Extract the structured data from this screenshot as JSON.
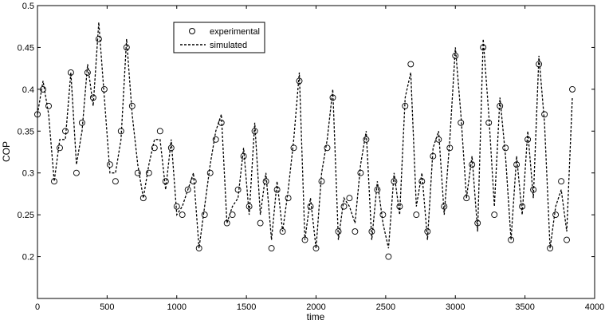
{
  "chart_data": {
    "type": "line",
    "title": "",
    "xlabel": "time",
    "ylabel": "COP",
    "xlim": [
      0,
      4000
    ],
    "ylim": [
      0.15,
      0.5
    ],
    "xticks": [
      0,
      500,
      1000,
      1500,
      2000,
      2500,
      3000,
      3500,
      4000
    ],
    "yticks": [
      0.2,
      0.25,
      0.3,
      0.35,
      0.4,
      0.45,
      0.5
    ],
    "xtick_labels": [
      "0",
      "500",
      "1000",
      "1500",
      "2000",
      "2500",
      "3000",
      "3500",
      "4000"
    ],
    "ytick_labels": [
      "0.2",
      "0.25",
      "0.3",
      "0.35",
      "0.4",
      "0.45",
      "0.5"
    ],
    "grid": false,
    "legend_position": "top-center",
    "x": [
      0,
      40,
      80,
      120,
      160,
      200,
      240,
      280,
      320,
      360,
      400,
      440,
      480,
      520,
      560,
      600,
      640,
      680,
      720,
      760,
      800,
      840,
      880,
      920,
      960,
      1000,
      1040,
      1080,
      1120,
      1160,
      1200,
      1240,
      1280,
      1320,
      1360,
      1400,
      1440,
      1480,
      1520,
      1560,
      1600,
      1640,
      1680,
      1720,
      1760,
      1800,
      1840,
      1880,
      1920,
      1960,
      2000,
      2040,
      2080,
      2120,
      2160,
      2200,
      2240,
      2280,
      2320,
      2360,
      2400,
      2440,
      2480,
      2520,
      2560,
      2600,
      2640,
      2680,
      2720,
      2760,
      2800,
      2840,
      2880,
      2920,
      2960,
      3000,
      3040,
      3080,
      3120,
      3160,
      3200,
      3240,
      3280,
      3320,
      3360,
      3400,
      3440,
      3480,
      3520,
      3560,
      3600,
      3640,
      3680,
      3720,
      3760,
      3800,
      3840
    ],
    "series": [
      {
        "name": "experimental",
        "style": "circle-markers",
        "color": "#000000",
        "values": [
          0.37,
          0.4,
          0.38,
          0.29,
          0.33,
          0.35,
          0.42,
          0.3,
          0.36,
          0.42,
          0.39,
          0.46,
          0.4,
          0.31,
          0.29,
          0.35,
          0.45,
          0.38,
          0.3,
          0.27,
          0.3,
          0.33,
          0.35,
          0.29,
          0.33,
          0.26,
          0.25,
          0.28,
          0.29,
          0.21,
          0.25,
          0.3,
          0.34,
          0.36,
          0.24,
          0.25,
          0.28,
          0.32,
          0.26,
          0.35,
          0.24,
          0.29,
          0.21,
          0.28,
          0.23,
          0.27,
          0.33,
          0.41,
          0.22,
          0.26,
          0.21,
          0.29,
          0.33,
          0.39,
          0.23,
          0.26,
          0.27,
          0.23,
          0.3,
          0.34,
          0.23,
          0.28,
          0.25,
          0.2,
          0.29,
          0.26,
          0.38,
          0.43,
          0.25,
          0.29,
          0.23,
          0.32,
          0.34,
          0.26,
          0.33,
          0.44,
          0.36,
          0.27,
          0.31,
          0.24,
          0.45,
          0.36,
          0.25,
          0.38,
          0.33,
          0.22,
          0.31,
          0.26,
          0.34,
          0.28,
          0.43,
          0.37,
          0.21,
          0.25,
          0.29,
          0.22,
          0.4
        ]
      },
      {
        "name": "simulated",
        "style": "dashed",
        "color": "#000000",
        "values": [
          0.37,
          0.41,
          0.37,
          0.29,
          0.34,
          0.34,
          0.42,
          0.31,
          0.35,
          0.43,
          0.38,
          0.48,
          0.39,
          0.3,
          0.3,
          0.34,
          0.46,
          0.37,
          0.31,
          0.27,
          0.31,
          0.34,
          0.34,
          0.28,
          0.34,
          0.25,
          0.26,
          0.28,
          0.3,
          0.21,
          0.26,
          0.31,
          0.35,
          0.37,
          0.24,
          0.26,
          0.27,
          0.33,
          0.25,
          0.36,
          0.25,
          0.3,
          0.22,
          0.29,
          0.23,
          0.28,
          0.34,
          0.42,
          0.22,
          0.27,
          0.21,
          0.3,
          0.34,
          0.4,
          0.22,
          0.27,
          0.26,
          0.24,
          0.31,
          0.35,
          0.22,
          0.29,
          0.24,
          0.21,
          0.3,
          0.25,
          0.39,
          0.42,
          0.26,
          0.3,
          0.22,
          0.33,
          0.35,
          0.25,
          0.34,
          0.45,
          0.37,
          0.27,
          0.32,
          0.23,
          0.46,
          0.37,
          0.26,
          0.39,
          0.32,
          0.22,
          0.32,
          0.25,
          0.35,
          0.27,
          0.44,
          0.36,
          0.21,
          0.26,
          0.28,
          0.23,
          0.39
        ]
      }
    ]
  }
}
